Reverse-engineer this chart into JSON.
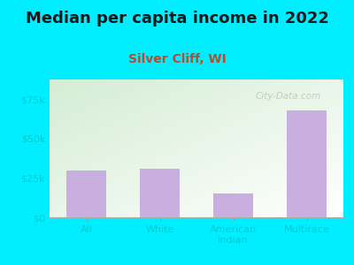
{
  "title": "Median per capita income in 2022",
  "subtitle": "Silver Cliff, WI",
  "categories": [
    "All",
    "White",
    "American\nIndian",
    "Multirace"
  ],
  "values": [
    30000,
    31000,
    15000,
    68000
  ],
  "bar_color": "#c9aee0",
  "background_outer": "#00eeff",
  "background_inner_topleft": "#d4edd4",
  "background_inner_bottomright": "#ffffff",
  "title_fontsize": 13,
  "subtitle_fontsize": 10,
  "subtitle_color": "#b05030",
  "tick_label_color": "#00cccc",
  "title_color": "#1a1a1a",
  "ylim": [
    0,
    87500
  ],
  "yticks": [
    0,
    25000,
    50000,
    75000
  ],
  "ytick_labels": [
    "$0",
    "$25k",
    "$50k",
    "$75k"
  ],
  "watermark": "City-Data.com"
}
